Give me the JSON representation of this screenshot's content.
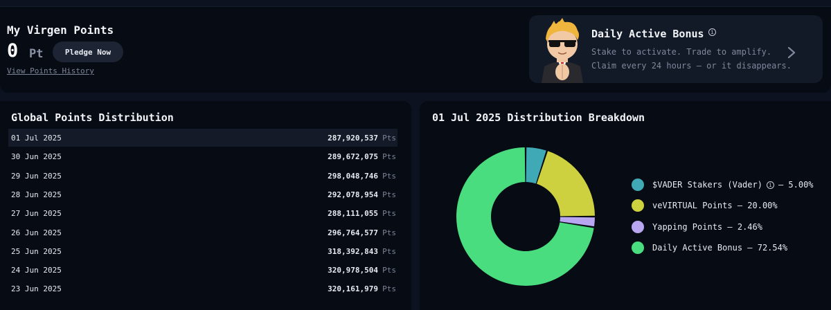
{
  "points": {
    "title": "My Virgen Points",
    "value": "0",
    "unit": "Pt",
    "pledge_label": "Pledge Now",
    "history_link": "View Points History"
  },
  "bonus": {
    "title": "Daily Active Bonus",
    "line1": "Stake to activate. Trade to amplify.",
    "line2": "Claim every 24 hours — or it disappears."
  },
  "global": {
    "title": "Global Points Distribution",
    "unit": "Pts",
    "rows": [
      {
        "date": "01 Jul 2025",
        "value": "287,920,537"
      },
      {
        "date": "30 Jun 2025",
        "value": "289,672,075"
      },
      {
        "date": "29 Jun 2025",
        "value": "298,048,746"
      },
      {
        "date": "28 Jun 2025",
        "value": "292,078,954"
      },
      {
        "date": "27 Jun 2025",
        "value": "288,111,055"
      },
      {
        "date": "26 Jun 2025",
        "value": "296,764,577"
      },
      {
        "date": "25 Jun 2025",
        "value": "318,392,843"
      },
      {
        "date": "24 Jun 2025",
        "value": "320,978,504"
      },
      {
        "date": "23 Jun 2025",
        "value": "320,161,979"
      }
    ]
  },
  "breakdown": {
    "title": "01 Jul 2025 Distribution Breakdown"
  },
  "chart_data": {
    "type": "pie",
    "title": "01 Jul 2025 Distribution Breakdown",
    "legend_position": "right",
    "slices": [
      {
        "label": "$VADER Stakers (Vader)",
        "pct_text": "5.00%",
        "value": 5.0,
        "color": "#3fa9b5"
      },
      {
        "label": "veVIRTUAL Points",
        "pct_text": "20.00%",
        "value": 20.0,
        "color": "#cdd13f"
      },
      {
        "label": "Yapping Points",
        "pct_text": "2.46%",
        "value": 2.46,
        "color": "#b9a6f0"
      },
      {
        "label": "Daily Active Bonus",
        "pct_text": "72.54%",
        "value": 72.54,
        "color": "#49dd7f"
      }
    ]
  }
}
